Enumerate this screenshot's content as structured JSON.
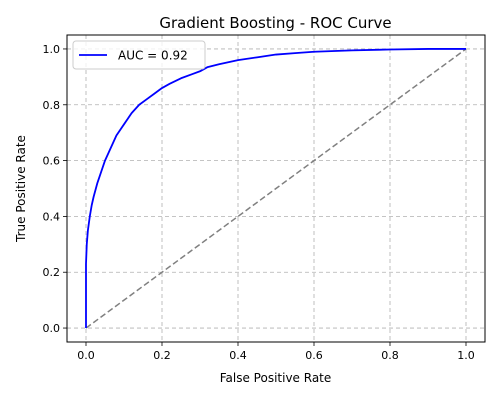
{
  "chart_data": {
    "type": "line",
    "title": "Gradient Boosting - ROC Curve",
    "xlabel": "False Positive Rate",
    "ylabel": "True Positive Rate",
    "xlim": [
      -0.05,
      1.05
    ],
    "ylim": [
      -0.05,
      1.05
    ],
    "xticks": [
      "0.0",
      "0.2",
      "0.4",
      "0.6",
      "0.8",
      "1.0"
    ],
    "yticks": [
      "0.0",
      "0.2",
      "0.4",
      "0.6",
      "0.8",
      "1.0"
    ],
    "grid": true,
    "legend_position": "top-left",
    "series": [
      {
        "name": "AUC = 0.92",
        "color": "#0000ff",
        "style": "solid",
        "x": [
          0.0,
          0.0,
          0.002,
          0.005,
          0.01,
          0.015,
          0.02,
          0.03,
          0.04,
          0.05,
          0.06,
          0.07,
          0.08,
          0.1,
          0.12,
          0.14,
          0.16,
          0.18,
          0.2,
          0.22,
          0.25,
          0.28,
          0.3,
          0.32,
          0.35,
          0.4,
          0.45,
          0.5,
          0.55,
          0.6,
          0.7,
          0.8,
          0.9,
          1.0
        ],
        "y": [
          0.0,
          0.23,
          0.3,
          0.35,
          0.4,
          0.44,
          0.47,
          0.52,
          0.56,
          0.6,
          0.63,
          0.66,
          0.69,
          0.73,
          0.77,
          0.8,
          0.82,
          0.84,
          0.86,
          0.875,
          0.895,
          0.91,
          0.92,
          0.935,
          0.945,
          0.96,
          0.97,
          0.98,
          0.985,
          0.99,
          0.995,
          0.998,
          1.0,
          1.0
        ]
      },
      {
        "name": "",
        "color": "#808080",
        "style": "dashed",
        "x": [
          0.0,
          1.0
        ],
        "y": [
          0.0,
          1.0
        ]
      }
    ]
  }
}
